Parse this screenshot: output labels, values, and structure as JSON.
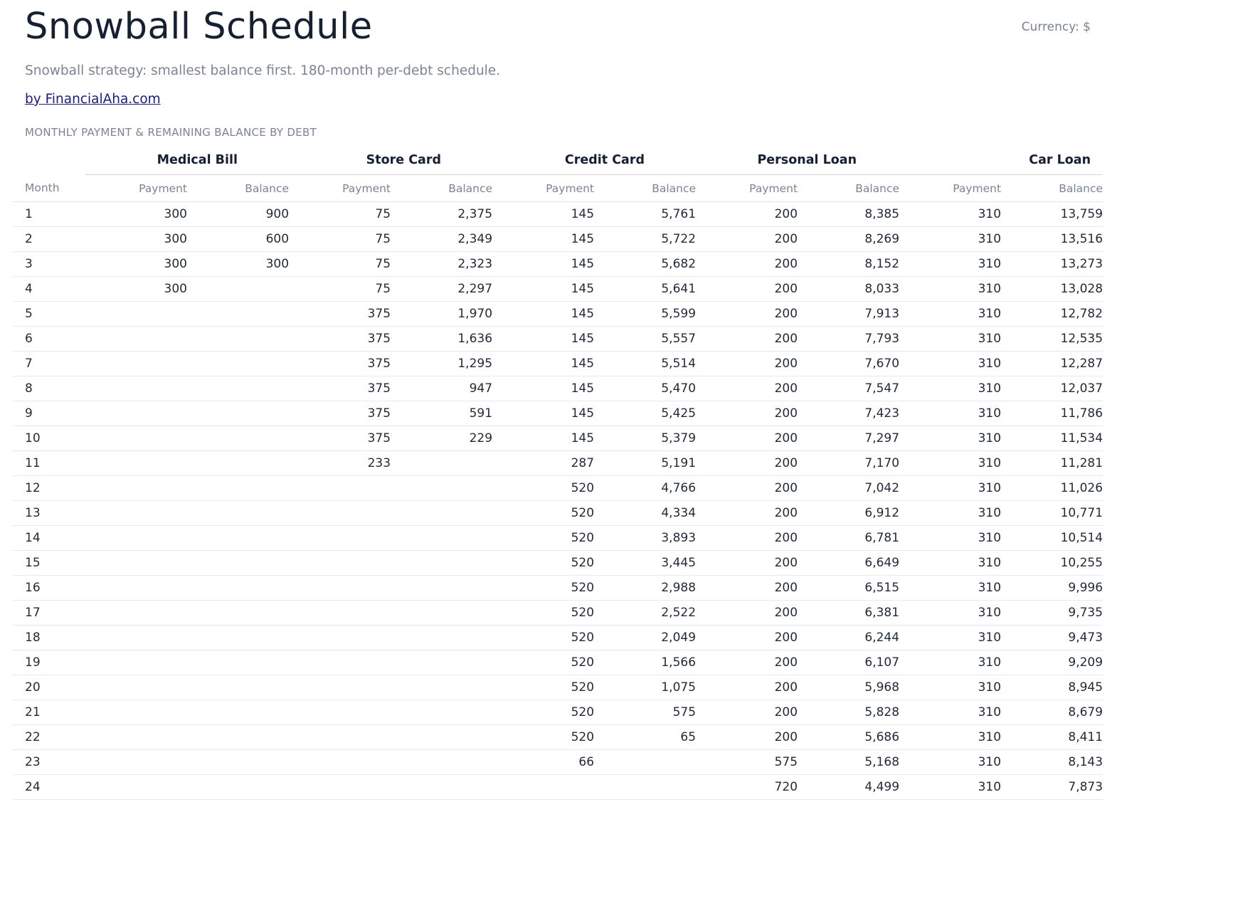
{
  "header": {
    "title": "Snowball Schedule",
    "currency": "Currency: $",
    "subtitle": "Snowball strategy: smallest balance first. 180-month per-debt schedule.",
    "byline": "by FinancialAha.com",
    "section_label": "MONTHLY PAYMENT & REMAINING BALANCE BY DEBT"
  },
  "table": {
    "month_label": "Month",
    "payment_label": "Payment",
    "balance_label": "Balance",
    "debts": [
      "Medical Bill",
      "Store Card",
      "Credit Card",
      "Personal Loan",
      "Car Loan"
    ],
    "rows": [
      [
        "1",
        "300",
        "900",
        "75",
        "2,375",
        "145",
        "5,761",
        "200",
        "8,385",
        "310",
        "13,759"
      ],
      [
        "2",
        "300",
        "600",
        "75",
        "2,349",
        "145",
        "5,722",
        "200",
        "8,269",
        "310",
        "13,516"
      ],
      [
        "3",
        "300",
        "300",
        "75",
        "2,323",
        "145",
        "5,682",
        "200",
        "8,152",
        "310",
        "13,273"
      ],
      [
        "4",
        "300",
        "",
        "75",
        "2,297",
        "145",
        "5,641",
        "200",
        "8,033",
        "310",
        "13,028"
      ],
      [
        "5",
        "",
        "",
        "375",
        "1,970",
        "145",
        "5,599",
        "200",
        "7,913",
        "310",
        "12,782"
      ],
      [
        "6",
        "",
        "",
        "375",
        "1,636",
        "145",
        "5,557",
        "200",
        "7,793",
        "310",
        "12,535"
      ],
      [
        "7",
        "",
        "",
        "375",
        "1,295",
        "145",
        "5,514",
        "200",
        "7,670",
        "310",
        "12,287"
      ],
      [
        "8",
        "",
        "",
        "375",
        "947",
        "145",
        "5,470",
        "200",
        "7,547",
        "310",
        "12,037"
      ],
      [
        "9",
        "",
        "",
        "375",
        "591",
        "145",
        "5,425",
        "200",
        "7,423",
        "310",
        "11,786"
      ],
      [
        "10",
        "",
        "",
        "375",
        "229",
        "145",
        "5,379",
        "200",
        "7,297",
        "310",
        "11,534"
      ],
      [
        "11",
        "",
        "",
        "233",
        "",
        "287",
        "5,191",
        "200",
        "7,170",
        "310",
        "11,281"
      ],
      [
        "12",
        "",
        "",
        "",
        "",
        "520",
        "4,766",
        "200",
        "7,042",
        "310",
        "11,026"
      ],
      [
        "13",
        "",
        "",
        "",
        "",
        "520",
        "4,334",
        "200",
        "6,912",
        "310",
        "10,771"
      ],
      [
        "14",
        "",
        "",
        "",
        "",
        "520",
        "3,893",
        "200",
        "6,781",
        "310",
        "10,514"
      ],
      [
        "15",
        "",
        "",
        "",
        "",
        "520",
        "3,445",
        "200",
        "6,649",
        "310",
        "10,255"
      ],
      [
        "16",
        "",
        "",
        "",
        "",
        "520",
        "2,988",
        "200",
        "6,515",
        "310",
        "9,996"
      ],
      [
        "17",
        "",
        "",
        "",
        "",
        "520",
        "2,522",
        "200",
        "6,381",
        "310",
        "9,735"
      ],
      [
        "18",
        "",
        "",
        "",
        "",
        "520",
        "2,049",
        "200",
        "6,244",
        "310",
        "9,473"
      ],
      [
        "19",
        "",
        "",
        "",
        "",
        "520",
        "1,566",
        "200",
        "6,107",
        "310",
        "9,209"
      ],
      [
        "20",
        "",
        "",
        "",
        "",
        "520",
        "1,075",
        "200",
        "5,968",
        "310",
        "8,945"
      ],
      [
        "21",
        "",
        "",
        "",
        "",
        "520",
        "575",
        "200",
        "5,828",
        "310",
        "8,679"
      ],
      [
        "22",
        "",
        "",
        "",
        "",
        "520",
        "65",
        "200",
        "5,686",
        "310",
        "8,411"
      ],
      [
        "23",
        "",
        "",
        "",
        "",
        "66",
        "",
        "575",
        "5,168",
        "310",
        "8,143"
      ],
      [
        "24",
        "",
        "",
        "",
        "",
        "",
        "",
        "720",
        "4,499",
        "310",
        "7,873"
      ]
    ]
  }
}
